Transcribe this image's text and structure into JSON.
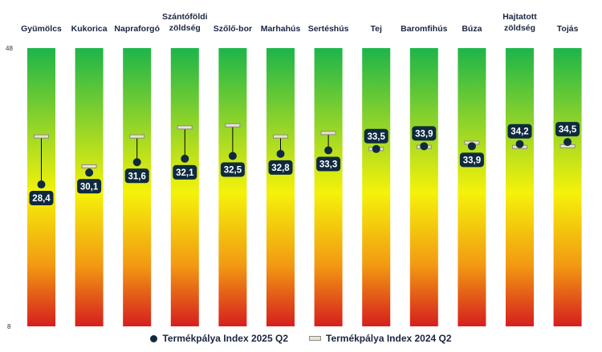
{
  "chart_data": {
    "type": "scatter",
    "title": "",
    "xlabel": "",
    "ylabel": "",
    "ylim": [
      8,
      48
    ],
    "y_ticks": [
      "48",
      "8"
    ],
    "grid": false,
    "legend_position": "bottom",
    "categories": [
      [
        "Gyümölcs"
      ],
      [
        "Kukorica"
      ],
      [
        "Napraforgó"
      ],
      [
        "Szántóföldi",
        "zöldség"
      ],
      [
        "Szőlő-bor"
      ],
      [
        "Marhahús"
      ],
      [
        "Sertéshús"
      ],
      [
        "Tej"
      ],
      [
        "Baromfihús"
      ],
      [
        "Búza"
      ],
      [
        "Hajtatott",
        "zöldség"
      ],
      [
        "Tojás"
      ]
    ],
    "series": [
      {
        "name": "Termékpálya Index 2025 Q2",
        "marker": "circle",
        "values": [
          28.4,
          30.1,
          31.6,
          32.1,
          32.5,
          32.8,
          33.3,
          33.5,
          33.9,
          33.9,
          34.2,
          34.5
        ],
        "labels": [
          "28,4",
          "30,1",
          "31,6",
          "32,1",
          "32,5",
          "32,8",
          "33,3",
          "33,5",
          "33,9",
          "33,9",
          "34,2",
          "34,5"
        ]
      },
      {
        "name": "Termékpálya Index 2024 Q2",
        "marker": "dash",
        "values": [
          35.3,
          31.0,
          35.3,
          36.6,
          36.9,
          35.3,
          35.8,
          33.5,
          33.8,
          34.4,
          33.8,
          33.9
        ]
      }
    ],
    "colors": {
      "gradient_top": "#1db54a",
      "gradient_upper": "#8fd32a",
      "gradient_mid": "#f5f20a",
      "gradient_lower": "#f29a12",
      "gradient_bottom": "#d61e1e",
      "marker": "#0f2a3f",
      "label_bg": "#0f2a3f",
      "dash_fill": "#e9e4cf",
      "dash_stroke": "#8a8a8a",
      "connector": "#000000"
    }
  }
}
